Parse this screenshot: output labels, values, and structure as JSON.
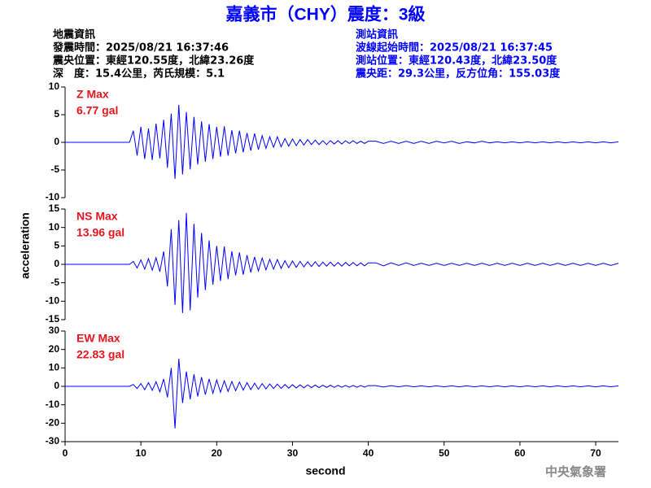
{
  "header": {
    "title": "嘉義市（CHY）震度：3級",
    "left": [
      "地震資訊",
      "發震時間：2025/08/21 16:37:46",
      "震央位置：東經120.55度，北緯23.26度",
      "深　度：15.4公里，芮氏規模：5.1"
    ],
    "right": [
      "測站資訊",
      "波線起始時間：2025/08/21 16:37:45",
      "測站位置：東經120.43度，北緯23.50度",
      "震央距：29.3公里，反方位角：155.03度"
    ]
  },
  "footer": "中央氣象署",
  "chart_data": [
    {
      "type": "line",
      "annotations": [
        "Z Max",
        "6.77 gal"
      ],
      "xlim": [
        0,
        73
      ],
      "ylim": [
        -10,
        10
      ],
      "yticks": [
        -10,
        -5,
        0,
        5,
        10
      ],
      "x": [
        0,
        8.5,
        9,
        9.5,
        10,
        10.5,
        11,
        11.5,
        12,
        12.5,
        13,
        13.5,
        14,
        14.5,
        15,
        15.5,
        16,
        16.5,
        17,
        17.5,
        18,
        18.5,
        19,
        19.5,
        20,
        20.5,
        21,
        21.5,
        22,
        22.5,
        23,
        23.5,
        24,
        24.5,
        25,
        25.5,
        26,
        26.5,
        27,
        27.5,
        28,
        28.5,
        29,
        29.5,
        30,
        30.5,
        31,
        31.5,
        32,
        32.5,
        33,
        33.5,
        34,
        34.5,
        35,
        35.5,
        36,
        36.5,
        37,
        37.5,
        38,
        38.5,
        39,
        39.5,
        40,
        41,
        42,
        43,
        44,
        45,
        46,
        47,
        48,
        49,
        50,
        51,
        52,
        53,
        54,
        55,
        56,
        57,
        58,
        59,
        60,
        61,
        62,
        63,
        64,
        65,
        66,
        67,
        68,
        69,
        70,
        71,
        72,
        73
      ],
      "series": [
        {
          "color": "#0000ff",
          "values": [
            0,
            0,
            2.1,
            -2.4,
            2.8,
            -3.0,
            2.5,
            -3.2,
            3.4,
            -2.9,
            4.1,
            -4.6,
            5.2,
            -6.6,
            6.77,
            -5.8,
            5.5,
            -4.9,
            4.6,
            -4.0,
            3.8,
            -3.5,
            3.3,
            -3.0,
            2.8,
            -2.6,
            2.9,
            -2.4,
            2.2,
            -2.0,
            2.1,
            -1.8,
            1.7,
            -1.5,
            1.6,
            -1.3,
            1.2,
            -1.1,
            1.0,
            -0.9,
            1.0,
            -0.8,
            0.7,
            -0.7,
            0.6,
            -0.6,
            0.5,
            -0.5,
            0.5,
            -0.4,
            0.4,
            -0.4,
            0.3,
            -0.4,
            0.3,
            -0.3,
            0.3,
            -0.3,
            0.3,
            -0.2,
            0.3,
            -0.2,
            0.2,
            -0.2,
            0.2,
            0.2,
            -0.2,
            0.2,
            -0.2,
            0.2,
            -0.2,
            0.2,
            -0.2,
            0.2,
            -0.1,
            0.2,
            -0.2,
            0.1,
            -0.1,
            0.2,
            -0.1,
            0.1,
            -0.1,
            0.1,
            -0.1,
            0.1,
            -0.1,
            0.1,
            -0.1,
            0.1,
            -0.1,
            0.1,
            -0.1,
            0.1,
            -0.1,
            0.1,
            -0.1,
            0.1
          ]
        }
      ]
    },
    {
      "type": "line",
      "annotations": [
        "NS Max",
        "13.96 gal"
      ],
      "ylabel": "acceleration",
      "xlim": [
        0,
        73
      ],
      "ylim": [
        -15,
        15
      ],
      "yticks": [
        -15,
        -10,
        -5,
        0,
        5,
        10,
        15
      ],
      "x": [
        0,
        8.5,
        9,
        9.5,
        10,
        10.5,
        11,
        11.5,
        12,
        12.5,
        13,
        13.5,
        14,
        14.5,
        15,
        15.5,
        16,
        16.5,
        17,
        17.5,
        18,
        18.5,
        19,
        19.5,
        20,
        20.5,
        21,
        21.5,
        22,
        22.5,
        23,
        23.5,
        24,
        24.5,
        25,
        25.5,
        26,
        26.5,
        27,
        27.5,
        28,
        28.5,
        29,
        29.5,
        30,
        30.5,
        31,
        31.5,
        32,
        32.5,
        33,
        33.5,
        34,
        34.5,
        35,
        35.5,
        36,
        36.5,
        37,
        37.5,
        38,
        38.5,
        39,
        39.5,
        40,
        41,
        42,
        43,
        44,
        45,
        46,
        47,
        48,
        49,
        50,
        51,
        52,
        53,
        54,
        55,
        56,
        57,
        58,
        59,
        60,
        61,
        62,
        63,
        64,
        65,
        66,
        67,
        68,
        69,
        70,
        71,
        72,
        73
      ],
      "series": [
        {
          "color": "#0000ff",
          "values": [
            0,
            0,
            0.8,
            -1.0,
            1.2,
            -1.3,
            1.5,
            -1.6,
            1.8,
            -2.0,
            3.5,
            -6.0,
            9.5,
            -11.0,
            12.0,
            -13.2,
            13.96,
            -12.5,
            11.0,
            -9.0,
            8.5,
            -7.0,
            6.5,
            -5.5,
            5.0,
            -4.5,
            4.8,
            -4.0,
            3.5,
            -3.0,
            3.2,
            -2.8,
            2.5,
            -2.2,
            2.0,
            -1.8,
            1.7,
            -1.5,
            1.4,
            -1.3,
            1.3,
            -1.1,
            1.0,
            -0.9,
            0.9,
            -0.8,
            0.8,
            -0.7,
            0.7,
            -0.6,
            0.7,
            -0.6,
            0.6,
            -0.5,
            0.6,
            -0.5,
            0.5,
            -0.5,
            0.5,
            -0.4,
            0.5,
            -0.4,
            0.4,
            -0.4,
            0.4,
            0.4,
            -0.4,
            0.4,
            -0.3,
            0.4,
            -0.3,
            0.3,
            -0.3,
            0.3,
            -0.3,
            0.3,
            -0.3,
            0.3,
            -0.3,
            0.3,
            -0.3,
            0.3,
            -0.3,
            0.3,
            -0.3,
            0.3,
            -0.3,
            0.3,
            -0.3,
            0.3,
            -0.3,
            0.3,
            -0.3,
            0.3,
            -0.3,
            0.3,
            -0.3,
            0.3
          ]
        }
      ]
    },
    {
      "type": "line",
      "annotations": [
        "EW Max",
        "22.83 gal"
      ],
      "xlabel": "second",
      "xlim": [
        0,
        73
      ],
      "xticks": [
        0,
        10,
        20,
        30,
        40,
        50,
        60,
        70
      ],
      "ylim": [
        -30,
        30
      ],
      "yticks": [
        -30,
        -20,
        -10,
        0,
        10,
        20,
        30
      ],
      "x": [
        0,
        8.5,
        9,
        9.5,
        10,
        10.5,
        11,
        11.5,
        12,
        12.5,
        13,
        13.5,
        14,
        14.5,
        15,
        15.5,
        16,
        16.5,
        17,
        17.5,
        18,
        18.5,
        19,
        19.5,
        20,
        20.5,
        21,
        21.5,
        22,
        22.5,
        23,
        23.5,
        24,
        24.5,
        25,
        25.5,
        26,
        26.5,
        27,
        27.5,
        28,
        28.5,
        29,
        29.5,
        30,
        30.5,
        31,
        31.5,
        32,
        32.5,
        33,
        33.5,
        34,
        34.5,
        35,
        35.5,
        36,
        36.5,
        37,
        37.5,
        38,
        38.5,
        39,
        39.5,
        40,
        41,
        42,
        43,
        44,
        45,
        46,
        47,
        48,
        49,
        50,
        51,
        52,
        53,
        54,
        55,
        56,
        57,
        58,
        59,
        60,
        61,
        62,
        63,
        64,
        65,
        66,
        67,
        68,
        69,
        70,
        71,
        72,
        73
      ],
      "series": [
        {
          "color": "#0000ff",
          "values": [
            0,
            0,
            1.0,
            -1.2,
            1.5,
            -1.8,
            2.0,
            -2.2,
            2.5,
            -3.0,
            4.0,
            -6.0,
            10.0,
            -22.83,
            15.0,
            -9.0,
            8.0,
            -7.0,
            6.5,
            -5.5,
            5.0,
            -4.5,
            4.0,
            -3.8,
            3.5,
            -3.2,
            3.0,
            -2.8,
            2.6,
            -2.4,
            2.3,
            -2.1,
            2.0,
            -1.8,
            1.7,
            -1.6,
            1.5,
            -1.4,
            1.3,
            -1.2,
            1.2,
            -1.1,
            1.0,
            -1.0,
            0.9,
            -0.9,
            0.8,
            -0.8,
            0.8,
            -0.7,
            0.7,
            -0.7,
            0.6,
            -0.6,
            0.6,
            -0.6,
            0.5,
            -0.5,
            0.5,
            -0.5,
            0.5,
            -0.5,
            0.4,
            -0.4,
            0.4,
            0.4,
            -0.4,
            0.4,
            -0.3,
            0.4,
            -0.3,
            0.3,
            -0.3,
            0.3,
            -0.3,
            0.3,
            -0.3,
            0.3,
            -0.3,
            0.3,
            -0.3,
            0.3,
            -0.3,
            0.3,
            -0.3,
            0.3,
            -0.3,
            0.3,
            -0.3,
            0.3,
            -0.3,
            0.3,
            -0.3,
            0.3,
            -0.3,
            0.3,
            -0.3,
            0.3
          ]
        }
      ]
    }
  ]
}
